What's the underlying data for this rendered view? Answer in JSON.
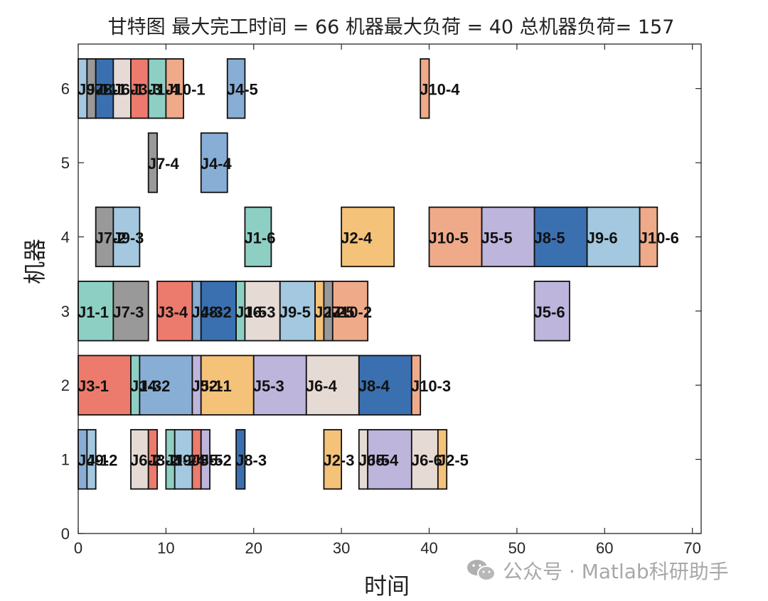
{
  "chart_data": {
    "type": "gantt",
    "title": "甘特图 最大完工时间 = 66 机器最大负荷 = 40 总机器负荷= 157",
    "xlabel": "时间",
    "ylabel": "机器",
    "xlim": [
      0,
      71
    ],
    "ylim": [
      0,
      6.6
    ],
    "xticks": [
      0,
      10,
      20,
      30,
      40,
      50,
      60,
      70
    ],
    "yticks": [
      0,
      1,
      2,
      3,
      4,
      5,
      6
    ],
    "grid": false,
    "job_colors": {
      "J1": "#8ECFC4",
      "J2": "#F5C27A",
      "J3": "#EC7B6D",
      "J4": "#88AED6",
      "J5": "#BDB5DC",
      "J6": "#E6DAD4",
      "J7": "#999999",
      "J8": "#3B70B0",
      "J9": "#A3C8DF",
      "J10": "#EFAA8A"
    },
    "tasks": [
      {
        "machine": 1,
        "job": "J4",
        "label": "J4-1",
        "start": 0,
        "end": 1
      },
      {
        "machine": 1,
        "job": "J9",
        "label": "J9-2",
        "start": 1,
        "end": 2
      },
      {
        "machine": 1,
        "job": "J6",
        "label": "J6-2",
        "start": 6,
        "end": 8
      },
      {
        "machine": 1,
        "job": "J3",
        "label": "J3-2",
        "start": 8,
        "end": 9
      },
      {
        "machine": 1,
        "job": "J1",
        "label": "J1-2",
        "start": 10,
        "end": 11
      },
      {
        "machine": 1,
        "job": "J9",
        "label": "J9-4",
        "start": 11,
        "end": 13
      },
      {
        "machine": 1,
        "job": "J3",
        "label": "J3-5",
        "start": 13,
        "end": 14
      },
      {
        "machine": 1,
        "job": "J5",
        "label": "J5-2",
        "start": 14,
        "end": 15
      },
      {
        "machine": 1,
        "job": "J8",
        "label": "J8-3",
        "start": 18,
        "end": 19
      },
      {
        "machine": 1,
        "job": "J2",
        "label": "J2-3",
        "start": 28,
        "end": 30
      },
      {
        "machine": 1,
        "job": "J6",
        "label": "J6-5",
        "start": 32,
        "end": 33
      },
      {
        "machine": 1,
        "job": "J5",
        "label": "J5-4",
        "start": 33,
        "end": 38
      },
      {
        "machine": 1,
        "job": "J6",
        "label": "J6-6",
        "start": 38,
        "end": 41
      },
      {
        "machine": 1,
        "job": "J2",
        "label": "J2-5",
        "start": 41,
        "end": 42
      },
      {
        "machine": 2,
        "job": "J3",
        "label": "J3-1",
        "start": 0,
        "end": 6
      },
      {
        "machine": 2,
        "job": "J1",
        "label": "J1-3",
        "start": 6,
        "end": 7
      },
      {
        "machine": 2,
        "job": "J4",
        "label": "J4-2",
        "start": 7,
        "end": 13
      },
      {
        "machine": 2,
        "job": "J5",
        "label": "J5-1",
        "start": 13,
        "end": 14
      },
      {
        "machine": 2,
        "job": "J2",
        "label": "J2-1",
        "start": 14,
        "end": 20
      },
      {
        "machine": 2,
        "job": "J5",
        "label": "J5-3",
        "start": 20,
        "end": 26
      },
      {
        "machine": 2,
        "job": "J6",
        "label": "J6-4",
        "start": 26,
        "end": 32
      },
      {
        "machine": 2,
        "job": "J8",
        "label": "J8-4",
        "start": 32,
        "end": 38
      },
      {
        "machine": 2,
        "job": "J10",
        "label": "J10-3",
        "start": 38,
        "end": 39
      },
      {
        "machine": 3,
        "job": "J1",
        "label": "J1-1",
        "start": 0,
        "end": 4
      },
      {
        "machine": 3,
        "job": "J7",
        "label": "J7-3",
        "start": 4,
        "end": 8
      },
      {
        "machine": 3,
        "job": "J3",
        "label": "J3-4",
        "start": 9,
        "end": 13
      },
      {
        "machine": 3,
        "job": "J4",
        "label": "J4-3",
        "start": 13,
        "end": 14
      },
      {
        "machine": 3,
        "job": "J8",
        "label": "J8-2",
        "start": 14,
        "end": 18
      },
      {
        "machine": 3,
        "job": "J1",
        "label": "J1-5",
        "start": 18,
        "end": 19
      },
      {
        "machine": 3,
        "job": "J6",
        "label": "J6-3",
        "start": 19,
        "end": 23
      },
      {
        "machine": 3,
        "job": "J9",
        "label": "J9-5",
        "start": 23,
        "end": 27
      },
      {
        "machine": 3,
        "job": "J2",
        "label": "J2-2",
        "start": 27,
        "end": 28
      },
      {
        "machine": 3,
        "job": "J7",
        "label": "J7-5",
        "start": 28,
        "end": 29
      },
      {
        "machine": 3,
        "job": "J10",
        "label": "J10-2",
        "start": 29,
        "end": 33
      },
      {
        "machine": 3,
        "job": "J5",
        "label": "J5-6",
        "start": 52,
        "end": 56
      },
      {
        "machine": 4,
        "job": "J7",
        "label": "J7-2",
        "start": 2,
        "end": 4
      },
      {
        "machine": 4,
        "job": "J9",
        "label": "J9-3",
        "start": 4,
        "end": 7
      },
      {
        "machine": 4,
        "job": "J1",
        "label": "J1-6",
        "start": 19,
        "end": 22
      },
      {
        "machine": 4,
        "job": "J2",
        "label": "J2-4",
        "start": 30,
        "end": 36
      },
      {
        "machine": 4,
        "job": "J10",
        "label": "J10-5",
        "start": 40,
        "end": 46
      },
      {
        "machine": 4,
        "job": "J5",
        "label": "J5-5",
        "start": 46,
        "end": 52
      },
      {
        "machine": 4,
        "job": "J8",
        "label": "J8-5",
        "start": 52,
        "end": 58
      },
      {
        "machine": 4,
        "job": "J9",
        "label": "J9-6",
        "start": 58,
        "end": 64
      },
      {
        "machine": 4,
        "job": "J10",
        "label": "J10-6",
        "start": 64,
        "end": 66
      },
      {
        "machine": 5,
        "job": "J7",
        "label": "J7-4",
        "start": 8,
        "end": 9
      },
      {
        "machine": 5,
        "job": "J4",
        "label": "J4-4",
        "start": 14,
        "end": 17
      },
      {
        "machine": 6,
        "job": "J9",
        "label": "J9-1",
        "start": 0,
        "end": 1
      },
      {
        "machine": 6,
        "job": "J7",
        "label": "J7-1",
        "start": 1,
        "end": 2
      },
      {
        "machine": 6,
        "job": "J8",
        "label": "J8-1",
        "start": 2,
        "end": 4
      },
      {
        "machine": 6,
        "job": "J6",
        "label": "J6-1",
        "start": 4,
        "end": 6
      },
      {
        "machine": 6,
        "job": "J3",
        "label": "J3-3",
        "start": 6,
        "end": 8
      },
      {
        "machine": 6,
        "job": "J1",
        "label": "J1-4",
        "start": 8,
        "end": 10
      },
      {
        "machine": 6,
        "job": "J10",
        "label": "J10-1",
        "start": 10,
        "end": 12
      },
      {
        "machine": 6,
        "job": "J4",
        "label": "J4-5",
        "start": 17,
        "end": 19
      },
      {
        "machine": 6,
        "job": "J10",
        "label": "J10-4",
        "start": 39,
        "end": 40
      }
    ],
    "visible_labels": {
      "machine_1": [
        "J4-1",
        "J9-2",
        "J6",
        "J2",
        "J9",
        "J5-2",
        "J8-3",
        "J2-3",
        "J5-4",
        "J6-",
        "J2-5"
      ],
      "machine_2": [
        "J3-1",
        "J4-2",
        "J2-1",
        "J5-3",
        "J6-4",
        "J8-4",
        "J10-3"
      ],
      "machine_3": [
        "J1-1",
        "J7-3",
        "J3-4",
        "J8-2",
        "J6-3",
        "J9-5",
        "J10-2",
        "J5-6"
      ],
      "machine_4": [
        "J7",
        "J9-3",
        "J1-6",
        "J2-4",
        "J10-5",
        "J5-5",
        "J8-5",
        "J9-6",
        "J10-6"
      ],
      "machine_5": [
        "J7-4",
        "J4-4"
      ],
      "machine_6": [
        "J8",
        "J6",
        "J3",
        "J1",
        "J10-1",
        "J4-5",
        "J10-4"
      ]
    },
    "summary": {
      "makespan": 66,
      "max_machine_load": 40,
      "total_machine_load": 157
    }
  },
  "watermark": {
    "text": "公众号 · Matlab科研助手",
    "icon": "wechat-icon"
  }
}
